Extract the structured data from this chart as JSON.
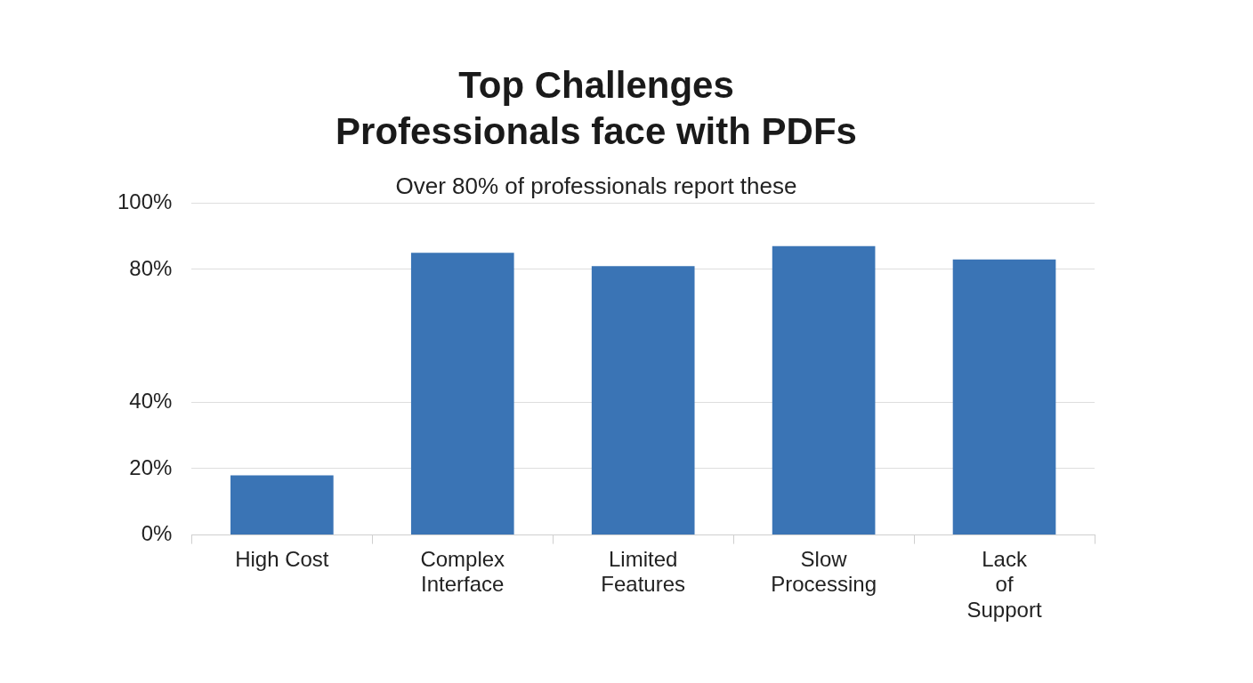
{
  "chart_data": {
    "type": "bar",
    "title": "Top Challenges\nProfessionals face with PDFs",
    "subtitle": "Over 80% of professionals report these",
    "categories": [
      "High Cost",
      "Complex Interface",
      "Limited Features",
      "Slow Processing",
      "Lack of Support"
    ],
    "values": [
      18,
      85,
      81,
      87,
      83
    ],
    "color": "#3a74b5",
    "ylim": [
      0,
      100
    ],
    "yticks": [
      {
        "value": 0,
        "label": "0%"
      },
      {
        "value": 20,
        "label": "20%"
      },
      {
        "value": 40,
        "label": "40%"
      },
      {
        "value": 80,
        "label": "80%"
      },
      {
        "value": 100,
        "label": "100%"
      }
    ],
    "grid": "y",
    "legend": false
  }
}
